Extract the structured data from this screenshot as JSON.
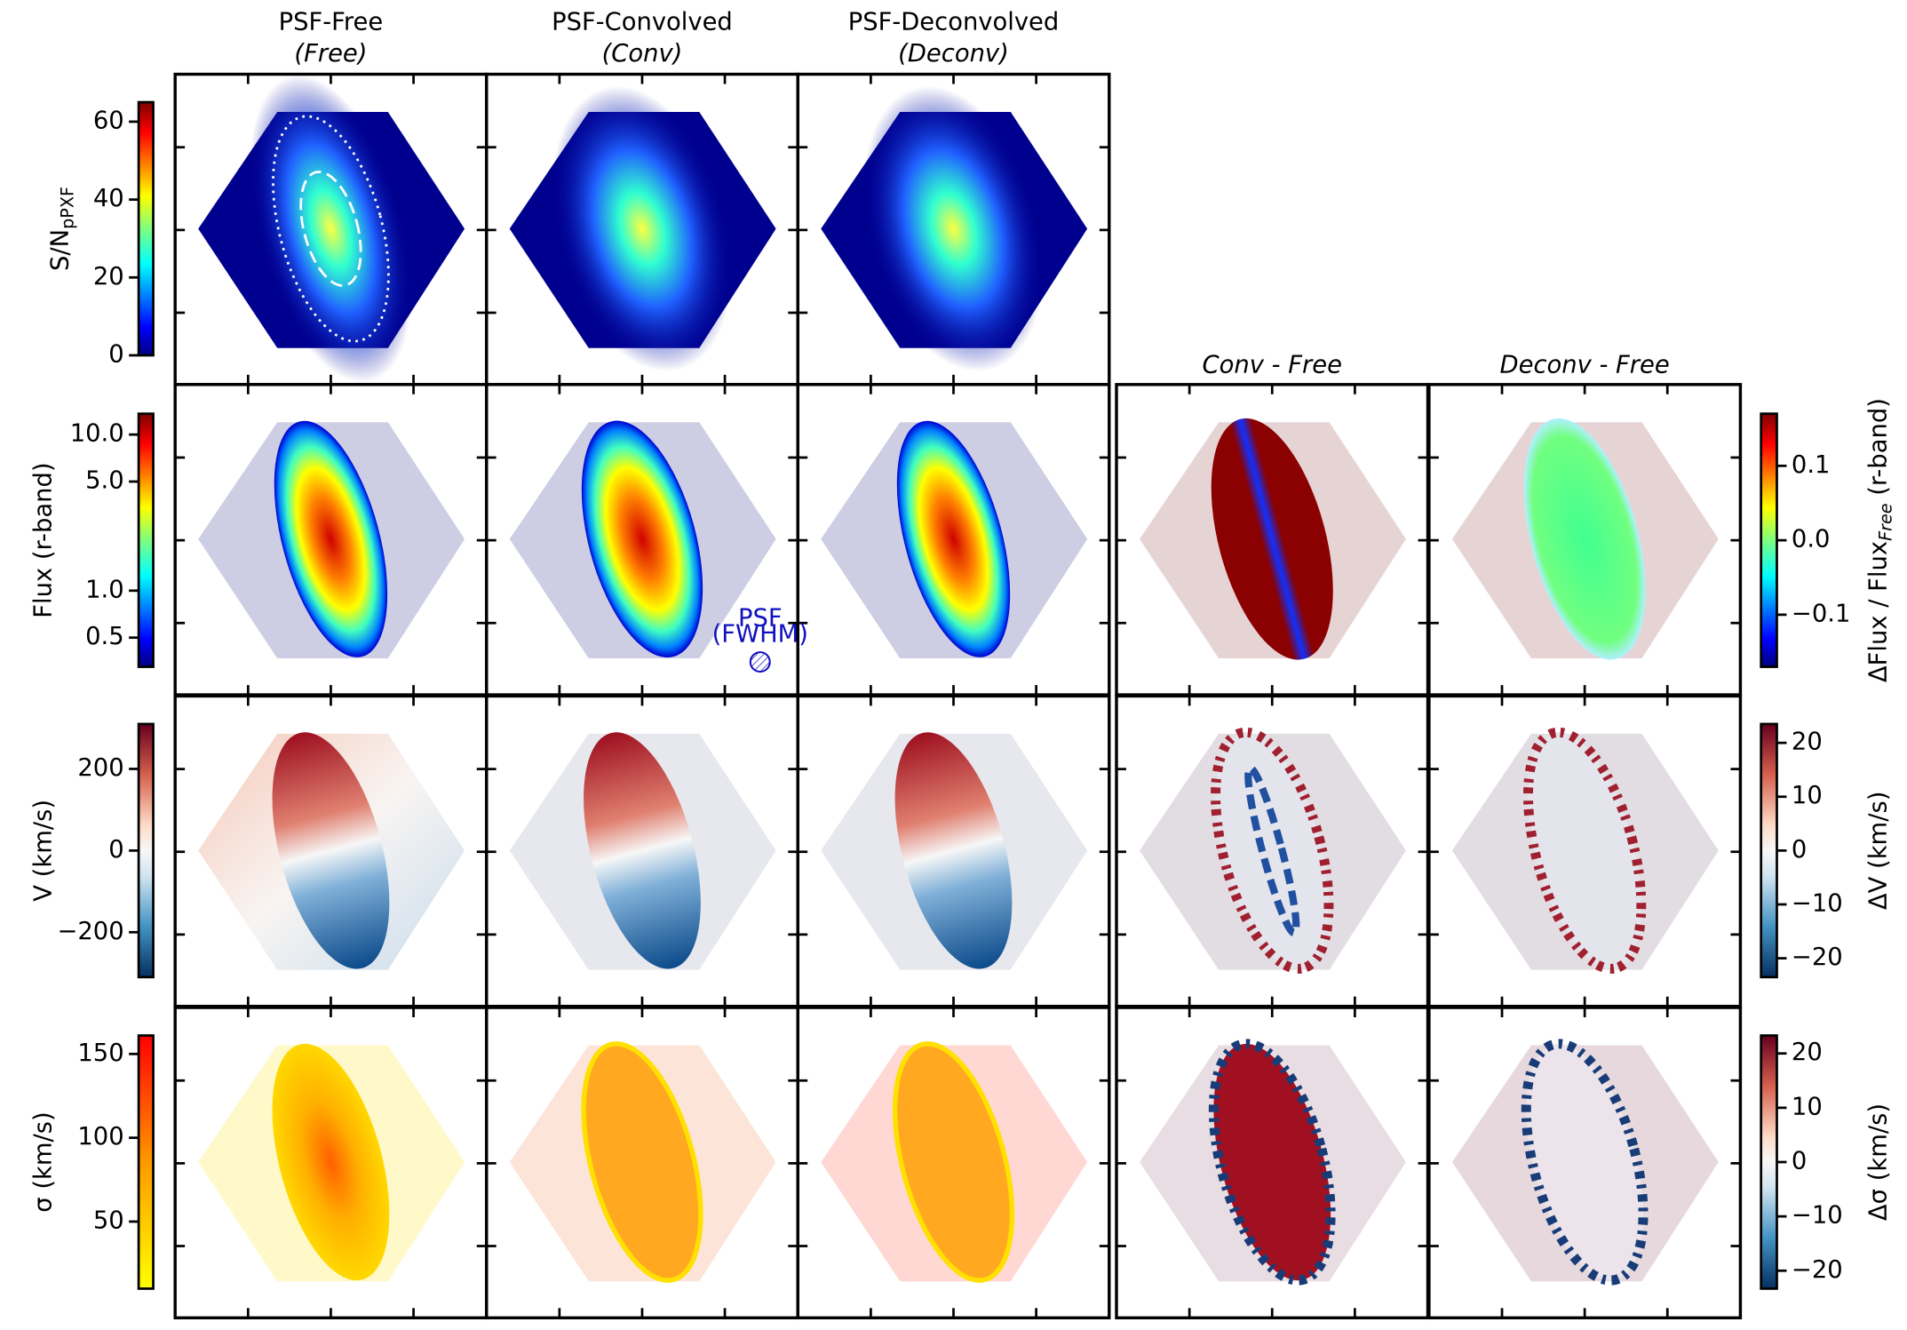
{
  "columns": [
    {
      "title": [
        "PSF-Free",
        "(Free)"
      ]
    },
    {
      "title": [
        "PSF-Convolved",
        "(Conv)"
      ]
    },
    {
      "title": [
        "PSF-Deconvolved",
        "(Deconv)"
      ]
    }
  ],
  "difference_columns": [
    "Conv - Free",
    "Deconv - Free"
  ],
  "psf_note": [
    "PSF",
    "(FWHM)"
  ],
  "colorbars": [
    {
      "label": [
        {
          "text": "S/N"
        },
        {
          "text": "pPXF",
          "sub": true
        }
      ],
      "cmap": "jet",
      "lim": [
        0,
        65
      ],
      "ticks": [
        0,
        20,
        40,
        60
      ]
    },
    {
      "label": [
        {
          "text": "Flux (r-band)"
        }
      ],
      "cmap": "jet",
      "scale": "log",
      "lim": [
        0.325,
        13.6
      ],
      "ticks": [
        {
          "value": 0.5,
          "label": "0.5"
        },
        {
          "value": 1,
          "label": "1.0"
        },
        {
          "value": 5,
          "label": "5.0"
        },
        {
          "value": 10,
          "label": "10.0"
        }
      ]
    },
    {
      "label": [
        {
          "text": "V (km/s)"
        }
      ],
      "cmap": "rdbu",
      "lim": [
        -310,
        310
      ],
      "ticks": [
        {
          "value": -200,
          "label": "−200"
        },
        0,
        200
      ]
    },
    {
      "label": [
        {
          "text": "σ (km/s)"
        }
      ],
      "cmap": "autumn",
      "lim": [
        10,
        161
      ],
      "ticks": [
        50,
        100,
        150
      ]
    },
    {
      "label": [
        {
          "text": "ΔFlux / Flux"
        },
        {
          "text": "Free",
          "sub": true
        },
        {
          "text": " (r-band)"
        }
      ],
      "cmap": "jet",
      "lim": [
        -0.17,
        0.17
      ],
      "ticks": [
        {
          "value": -0.1,
          "label": "−0.1"
        },
        {
          "value": 0,
          "label": "0.0"
        },
        0.1
      ]
    },
    {
      "label": [
        {
          "text": "ΔV (km/s)"
        }
      ],
      "cmap": "rdbu",
      "lim": [
        -23.5,
        23.5
      ],
      "ticks": [
        {
          "value": -20,
          "label": "−20"
        },
        {
          "value": -10,
          "label": "−10"
        },
        0,
        10,
        20
      ]
    },
    {
      "label": [
        {
          "text": "Δσ (km/s)"
        }
      ],
      "cmap": "rdbu",
      "lim": [
        -23.3,
        23.3
      ],
      "ticks": [
        {
          "value": -20,
          "label": "−20"
        },
        {
          "value": -10,
          "label": "−10"
        },
        0,
        10,
        20
      ]
    }
  ]
}
